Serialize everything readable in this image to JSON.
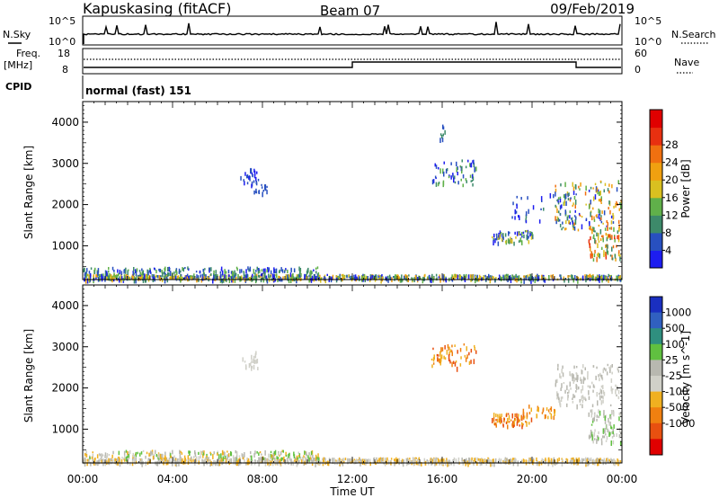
{
  "header": {
    "station": "Kapuskasing (fitACF)",
    "beam": "Beam 07",
    "date": "09/Feb/2019"
  },
  "panels": {
    "nsky": {
      "label": "N.Sky",
      "ticks": [
        "10^5",
        "10^0"
      ],
      "right_ticks": [
        "10^5",
        "10^0"
      ],
      "right_label": "N.Search"
    },
    "freq": {
      "label_line1": "Freq.",
      "label_line2": "[MHz]",
      "ticks": [
        "18",
        "8"
      ],
      "right_ticks": [
        "60",
        "0"
      ],
      "right_label": "Nave"
    },
    "cpid": {
      "label": "CPID",
      "text": "normal (fast) 151"
    }
  },
  "chart_data": [
    {
      "type": "heatmap",
      "name": "power",
      "ylabel": "Slant Range [km]",
      "xlabel": "Time UT",
      "x_ticks": [
        "00:00",
        "04:00",
        "08:00",
        "12:00",
        "16:00",
        "20:00",
        "00:00"
      ],
      "xlim_hours": [
        0,
        24
      ],
      "y_ticks": [
        1000,
        2000,
        3000,
        4000
      ],
      "ylim": [
        180,
        4500
      ],
      "colorbar": {
        "label": "Power [dB]",
        "ticks": [
          "4",
          "8",
          "12",
          "16",
          "20",
          "24",
          "28"
        ],
        "colors": [
          "#1d1df0",
          "#2850c0",
          "#3d8a6a",
          "#60b04a",
          "#d9c020",
          "#f0a010",
          "#f07010",
          "#e83010",
          "#e00000"
        ]
      },
      "clusters": [
        {
          "t": [
            0.0,
            24.0
          ],
          "r": [
            200,
            320
          ],
          "n": 900,
          "c": [
            0,
            1,
            2,
            3,
            4,
            5
          ]
        },
        {
          "t": [
            0.0,
            10.5
          ],
          "r": [
            300,
            500
          ],
          "n": 220,
          "c": [
            0,
            1,
            2,
            3
          ]
        },
        {
          "t": [
            7.0,
            7.8
          ],
          "r": [
            2500,
            2900
          ],
          "n": 25,
          "c": [
            0,
            1
          ]
        },
        {
          "t": [
            7.5,
            8.2
          ],
          "r": [
            2300,
            2600
          ],
          "n": 18,
          "c": [
            1
          ]
        },
        {
          "t": [
            15.5,
            17.5
          ],
          "r": [
            2500,
            3100
          ],
          "n": 60,
          "c": [
            0,
            1,
            2,
            3
          ]
        },
        {
          "t": [
            15.8,
            16.2
          ],
          "r": [
            3600,
            3950
          ],
          "n": 8,
          "c": [
            1,
            2
          ]
        },
        {
          "t": [
            18.2,
            20.0
          ],
          "r": [
            1100,
            1400
          ],
          "n": 70,
          "c": [
            0,
            1,
            2,
            3,
            4
          ]
        },
        {
          "t": [
            21.0,
            24.0
          ],
          "r": [
            1400,
            2600
          ],
          "n": 160,
          "c": [
            0,
            1,
            2,
            3,
            4,
            5,
            6
          ]
        },
        {
          "t": [
            22.5,
            24.0
          ],
          "r": [
            700,
            1500
          ],
          "n": 90,
          "c": [
            2,
            3,
            4,
            5,
            6,
            7
          ]
        },
        {
          "t": [
            19.0,
            22.0
          ],
          "r": [
            1600,
            2300
          ],
          "n": 40,
          "c": [
            0,
            1,
            2
          ]
        }
      ]
    },
    {
      "type": "heatmap",
      "name": "velocity",
      "ylabel": "Slant Range [km]",
      "xlabel": "Time UT",
      "x_ticks": [
        "00:00",
        "04:00",
        "08:00",
        "12:00",
        "16:00",
        "20:00",
        "00:00"
      ],
      "xlim_hours": [
        0,
        24
      ],
      "y_ticks": [
        1000,
        2000,
        3000,
        4000
      ],
      "ylim": [
        180,
        4500
      ],
      "colorbar": {
        "label": "Velocity [m s^-1]",
        "ticks": [
          "1000",
          "500",
          "100",
          "25",
          "-25",
          "-100",
          "-500",
          "-1000"
        ],
        "colors": [
          "#1a2fc0",
          "#3060c0",
          "#2f8f7f",
          "#60c040",
          "#b8b8b0",
          "#d0d0c8",
          "#f0b020",
          "#f08010",
          "#e85010",
          "#e00000"
        ]
      },
      "clusters": [
        {
          "t": [
            0.0,
            24.0
          ],
          "r": [
            200,
            320
          ],
          "n": 900,
          "c": [
            4,
            5,
            6
          ]
        },
        {
          "t": [
            0.0,
            10.5
          ],
          "r": [
            300,
            500
          ],
          "n": 220,
          "c": [
            4,
            5,
            6,
            3
          ]
        },
        {
          "t": [
            7.0,
            7.8
          ],
          "r": [
            2500,
            2900
          ],
          "n": 20,
          "c": [
            5
          ]
        },
        {
          "t": [
            15.5,
            17.5
          ],
          "r": [
            2500,
            3100
          ],
          "n": 60,
          "c": [
            7,
            8,
            6
          ]
        },
        {
          "t": [
            18.2,
            20.0
          ],
          "r": [
            1100,
            1400
          ],
          "n": 70,
          "c": [
            6,
            7,
            8
          ]
        },
        {
          "t": [
            21.0,
            24.0
          ],
          "r": [
            1600,
            2600
          ],
          "n": 140,
          "c": [
            4,
            5
          ]
        },
        {
          "t": [
            22.5,
            24.0
          ],
          "r": [
            700,
            1500
          ],
          "n": 90,
          "c": [
            3,
            4,
            5
          ]
        },
        {
          "t": [
            19.5,
            21.0
          ],
          "r": [
            1300,
            1600
          ],
          "n": 30,
          "c": [
            6,
            7
          ]
        }
      ]
    }
  ]
}
